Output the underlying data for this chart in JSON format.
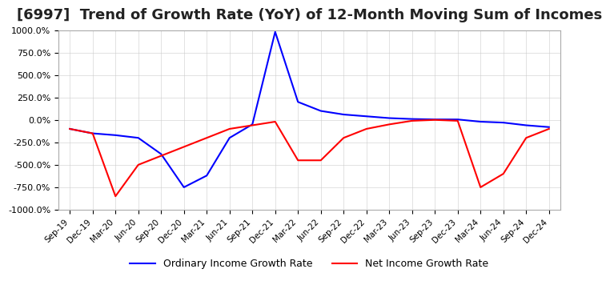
{
  "title": "[6997]  Trend of Growth Rate (YoY) of 12-Month Moving Sum of Incomes",
  "title_fontsize": 13,
  "background_color": "#ffffff",
  "grid_color": "#cccccc",
  "ylim": [
    -1000,
    1000
  ],
  "yticks": [
    -1000,
    -750,
    -500,
    -250,
    0,
    250,
    500,
    750,
    1000
  ],
  "ytick_labels": [
    "-1000.0%",
    "-750.0%",
    "-500.0%",
    "-250.0%",
    "0.0%",
    "250.0%",
    "500.0%",
    "750.0%",
    "1000.0%"
  ],
  "ordinary_income": {
    "label": "Ordinary Income Growth Rate",
    "color": "#0000ff",
    "x": [
      0,
      1,
      2,
      3,
      4,
      5,
      6,
      7,
      8,
      9,
      10,
      11,
      12,
      13,
      14,
      15,
      16,
      17,
      18,
      19,
      20,
      21
    ],
    "y": [
      -100,
      -150,
      -170,
      -200,
      -380,
      -750,
      -620,
      -200,
      -50,
      980,
      200,
      100,
      60,
      40,
      20,
      10,
      5,
      5,
      -20,
      -30,
      -60,
      -80
    ]
  },
  "net_income": {
    "label": "Net Income Growth Rate",
    "color": "#ff0000",
    "x": [
      0,
      1,
      2,
      3,
      4,
      5,
      6,
      7,
      8,
      9,
      10,
      11,
      12,
      13,
      14,
      15,
      16,
      17,
      18,
      19,
      20,
      21
    ],
    "y": [
      -100,
      -150,
      -850,
      -500,
      -400,
      -300,
      -200,
      -100,
      -60,
      -20,
      -450,
      -450,
      -200,
      -100,
      -50,
      -10,
      0,
      -10,
      -750,
      -600,
      -200,
      -100
    ]
  },
  "xtick_labels": [
    "Sep-19",
    "Dec-19",
    "Mar-20",
    "Jun-20",
    "Sep-20",
    "Dec-20",
    "Mar-21",
    "Jun-21",
    "Sep-21",
    "Dec-21",
    "Mar-22",
    "Jun-22",
    "Sep-22",
    "Dec-22",
    "Mar-23",
    "Jun-23",
    "Sep-23",
    "Dec-23",
    "Mar-24",
    "Jun-24",
    "Sep-24",
    "Dec-24"
  ]
}
